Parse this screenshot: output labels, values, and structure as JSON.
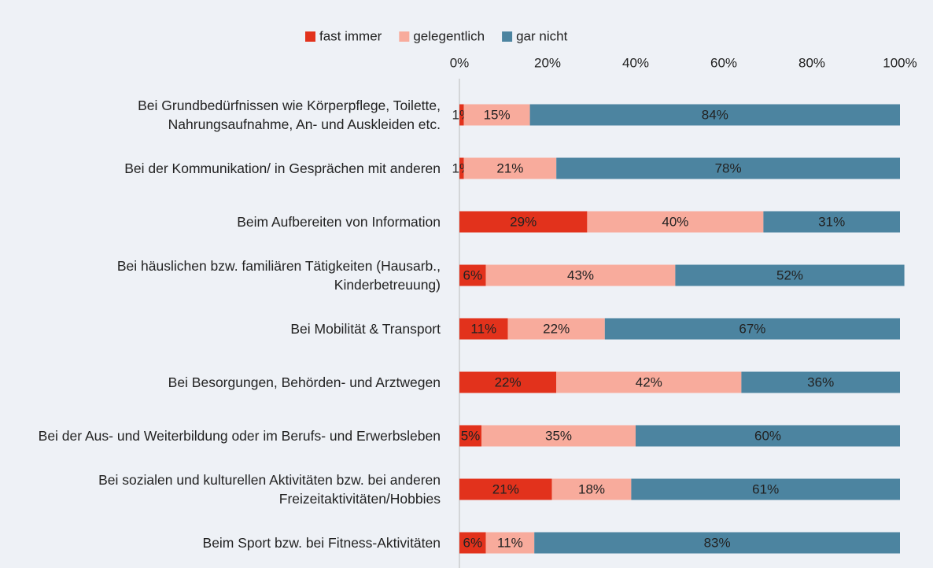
{
  "chart_data": {
    "type": "stacked_barh",
    "categories": [
      "Bei Grundbedürfnissen wie Körperpflege, Toilette, Nahrungsaufnahme, An- und Auskleiden etc.",
      "Bei der Kommunikation/ in Gesprächen mit anderen",
      "Beim Aufbereiten von Information",
      "Bei häuslichen bzw. familiären Tätigkeiten (Hausarb., Kinderbetreuung)",
      "Bei Mobilität & Transport",
      "Bei Besorgungen, Behörden- und Arztwegen",
      "Bei der Aus- und Weiterbildung oder im Berufs- und Erwerbsleben",
      "Bei sozialen und kulturellen Aktivitäten bzw. bei anderen Freizeitaktivitäten/Hobbies",
      "Beim Sport bzw. bei Fitness-Aktivitäten"
    ],
    "series": [
      {
        "name": "fast immer",
        "color": "#e2321c",
        "values": [
          1,
          1,
          29,
          6,
          11,
          22,
          5,
          21,
          6
        ],
        "value_labels": [
          "1%",
          "1%",
          "29%",
          "6%",
          "11%",
          "22%",
          "5%",
          "21%",
          "6%"
        ]
      },
      {
        "name": "gelegentlich",
        "color": "#f8ab9c",
        "values": [
          15,
          21,
          40,
          43,
          22,
          42,
          35,
          18,
          11
        ],
        "value_labels": [
          "15%",
          "21%",
          "40%",
          "43%",
          "22%",
          "42%",
          "35%",
          "18%",
          "11%"
        ]
      },
      {
        "name": "gar nicht",
        "color": "#4c84a0",
        "values": [
          84,
          78,
          31,
          52,
          67,
          36,
          60,
          61,
          83
        ],
        "value_labels": [
          "84%",
          "78%",
          "31%",
          "52%",
          "67%",
          "36%",
          "60%",
          "61%",
          "83%"
        ]
      }
    ],
    "xlim": [
      0,
      100
    ],
    "xticks": [
      {
        "value": 0,
        "label": "0%"
      },
      {
        "value": 20,
        "label": "20%"
      },
      {
        "value": 40,
        "label": "40%"
      },
      {
        "value": 60,
        "label": "60%"
      },
      {
        "value": 80,
        "label": "80%"
      },
      {
        "value": 100,
        "label": "100%"
      }
    ],
    "legend": "top"
  }
}
